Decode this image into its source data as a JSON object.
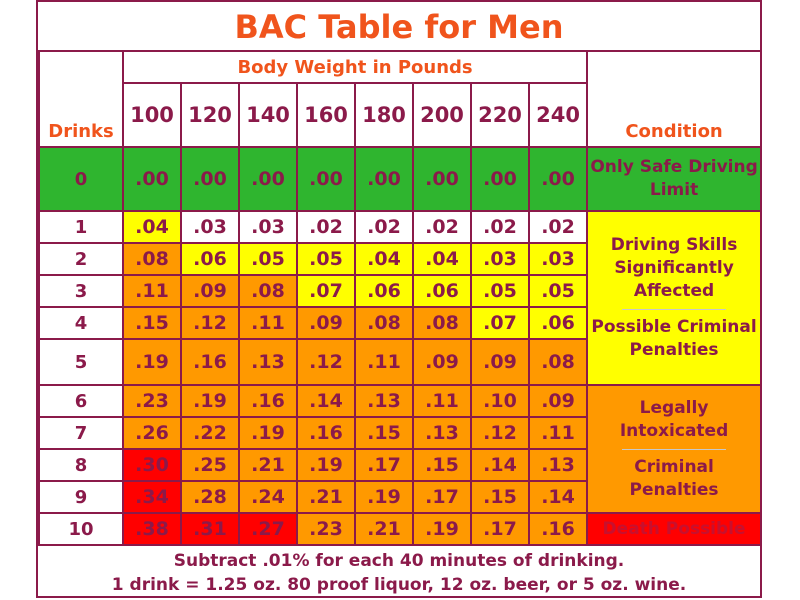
{
  "title": "BAC Table for Men",
  "header": {
    "drinks_label": "Drinks",
    "weight_label": "Body Weight in Pounds",
    "condition_label": "Condition",
    "weights": [
      "100",
      "120",
      "140",
      "160",
      "180",
      "200",
      "220",
      "240"
    ]
  },
  "rows": [
    {
      "drinks": "0",
      "values": [
        ".00",
        ".00",
        ".00",
        ".00",
        ".00",
        ".00",
        ".00",
        ".00"
      ],
      "levels": [
        "g",
        "g",
        "g",
        "g",
        "g",
        "g",
        "g",
        "g"
      ]
    },
    {
      "drinks": "1",
      "values": [
        ".04",
        ".03",
        ".03",
        ".02",
        ".02",
        ".02",
        ".02",
        ".02"
      ],
      "levels": [
        "y",
        "w",
        "w",
        "w",
        "w",
        "w",
        "w",
        "w"
      ]
    },
    {
      "drinks": "2",
      "values": [
        ".08",
        ".06",
        ".05",
        ".05",
        ".04",
        ".04",
        ".03",
        ".03"
      ],
      "levels": [
        "o",
        "y",
        "y",
        "y",
        "y",
        "y",
        "y",
        "y"
      ]
    },
    {
      "drinks": "3",
      "values": [
        ".11",
        ".09",
        ".08",
        ".07",
        ".06",
        ".06",
        ".05",
        ".05"
      ],
      "levels": [
        "o",
        "o",
        "o",
        "y",
        "y",
        "y",
        "y",
        "y"
      ]
    },
    {
      "drinks": "4",
      "values": [
        ".15",
        ".12",
        ".11",
        ".09",
        ".08",
        ".08",
        ".07",
        ".06"
      ],
      "levels": [
        "o",
        "o",
        "o",
        "o",
        "o",
        "o",
        "y",
        "y"
      ]
    },
    {
      "drinks": "5",
      "values": [
        ".19",
        ".16",
        ".13",
        ".12",
        ".11",
        ".09",
        ".09",
        ".08"
      ],
      "levels": [
        "o",
        "o",
        "o",
        "o",
        "o",
        "o",
        "o",
        "o"
      ]
    },
    {
      "drinks": "6",
      "values": [
        ".23",
        ".19",
        ".16",
        ".14",
        ".13",
        ".11",
        ".10",
        ".09"
      ],
      "levels": [
        "o",
        "o",
        "o",
        "o",
        "o",
        "o",
        "o",
        "o"
      ]
    },
    {
      "drinks": "7",
      "values": [
        ".26",
        ".22",
        ".19",
        ".16",
        ".15",
        ".13",
        ".12",
        ".11"
      ],
      "levels": [
        "o",
        "o",
        "o",
        "o",
        "o",
        "o",
        "o",
        "o"
      ]
    },
    {
      "drinks": "8",
      "values": [
        ".30",
        ".25",
        ".21",
        ".19",
        ".17",
        ".15",
        ".14",
        ".13"
      ],
      "levels": [
        "r",
        "o",
        "o",
        "o",
        "o",
        "o",
        "o",
        "o"
      ]
    },
    {
      "drinks": "9",
      "values": [
        ".34",
        ".28",
        ".24",
        ".21",
        ".19",
        ".17",
        ".15",
        ".14"
      ],
      "levels": [
        "r",
        "o",
        "o",
        "o",
        "o",
        "o",
        "o",
        "o"
      ]
    },
    {
      "drinks": "10",
      "values": [
        ".38",
        ".31",
        ".27",
        ".23",
        ".21",
        ".19",
        ".17",
        ".16"
      ],
      "levels": [
        "r",
        "r",
        "r",
        "o",
        "o",
        "o",
        "o",
        "o"
      ]
    }
  ],
  "conditions": {
    "safe": "Only Safe Driving Limit",
    "skills": "Driving Skills Significantly Affected",
    "possible": "Possible Criminal Penalties",
    "intoxicated": "Legally Intoxicated",
    "criminal": "Criminal Penalties",
    "death": "Death Possible"
  },
  "footer": {
    "line1": "Subtract .01% for each 40 minutes of drinking.",
    "line2": "1 drink = 1.25 oz. 80 proof liquor, 12 oz. beer, or 5 oz. wine."
  },
  "colors": {
    "border": "#8b1a4a",
    "heading": "#f0541c",
    "green": "#2fb52f",
    "yellow": "#ffff00",
    "orange": "#ff9900",
    "red": "#ff0000"
  }
}
